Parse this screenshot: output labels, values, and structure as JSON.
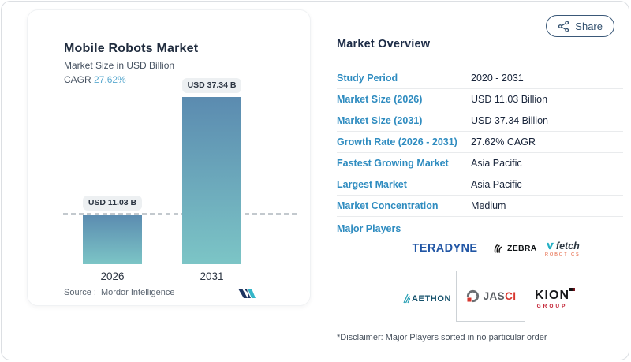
{
  "share_button": {
    "label": "Share"
  },
  "chart_panel": {
    "title": "Mobile Robots Market",
    "subtitle": "Market Size in USD Billion",
    "cagr_label": "CAGR",
    "cagr_value": "27.62%",
    "source_label": "Source :",
    "source_name": "Mordor Intelligence"
  },
  "chart_data": {
    "type": "bar",
    "title": "Mobile Robots Market",
    "ylabel": "Market Size in USD Billion",
    "categories": [
      "2026",
      "2031"
    ],
    "values": [
      11.03,
      37.34
    ],
    "bar_labels": [
      "USD 11.03 B",
      "USD 37.34 B"
    ],
    "cagr_percent": 27.62,
    "reference_line_value": 11.03,
    "grid": false,
    "legend": "none",
    "bar_gradient_top": "#5b8bb0",
    "bar_gradient_bottom": "#7cc5c6"
  },
  "overview": {
    "title": "Market Overview",
    "rows": [
      {
        "label": "Study Period",
        "value": "2020 - 2031"
      },
      {
        "label": "Market Size (2026)",
        "value": "USD 11.03 Billion"
      },
      {
        "label": "Market Size (2031)",
        "value": "USD 37.34 Billion"
      },
      {
        "label": "Growth Rate (2026 - 2031)",
        "value": "27.62% CAGR"
      },
      {
        "label": "Fastest Growing Market",
        "value": "Asia Pacific"
      },
      {
        "label": "Largest Market",
        "value": "Asia Pacific"
      },
      {
        "label": "Market Concentration",
        "value": "Medium"
      }
    ],
    "major_players_label": "Major Players",
    "players": {
      "teradyne": "TERADYNE",
      "zebra": "ZEBRA",
      "fetch": "fetch",
      "fetch_sub": "ROBOTICS",
      "aethon": "AETHON",
      "jasci_part1": "JAS",
      "jasci_part2": "CI",
      "kion": "KION",
      "kion_sub": "GROUP"
    },
    "disclaimer": "*Disclaimer: Major Players sorted in no particular order"
  },
  "colors": {
    "accent_blue": "#2f8cc0",
    "cagr_blue": "#5aa9cf",
    "heading_navy": "#1d2c47",
    "teradyne_blue": "#2156a5",
    "jasci_red": "#d8372f",
    "kion_red": "#c22032",
    "fetch_teal": "#23b0c4"
  }
}
